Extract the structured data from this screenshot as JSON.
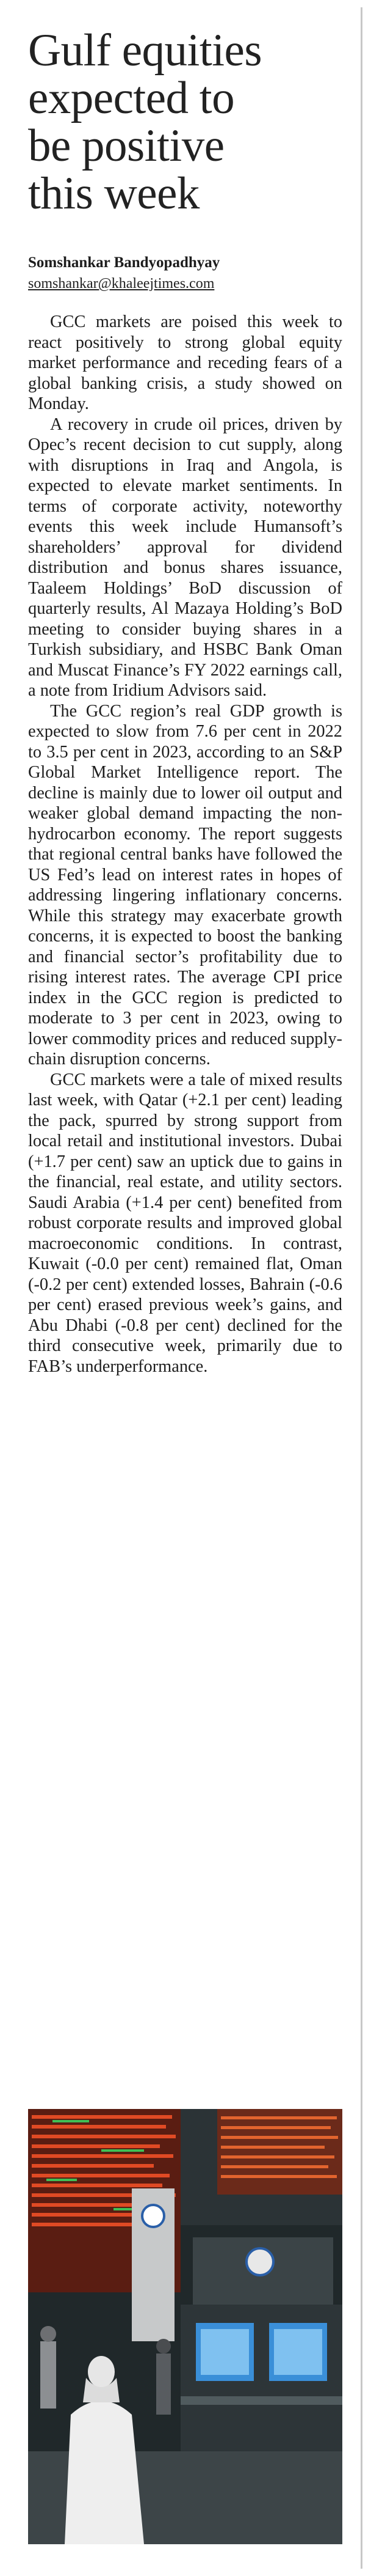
{
  "article": {
    "headline_lines": [
      "Gulf equities",
      "expected to",
      "be positive",
      "this week"
    ],
    "author": "Somshankar Bandyopadhyay",
    "email": "somshankar@khaleejtimes.com",
    "paragraphs": [
      "GCC markets are poised this week to react positively to strong global equity market performance and receding fears of a global banking crisis, a study showed on Monday.",
      "A recovery in crude oil prices, driven by Opec’s recent decision to cut supply, along with disruptions in Iraq and Angola, is expected to elevate market sentiments. In terms of corporate activity, noteworthy events this week include Humansoft’s shareholders’ approval for dividend distribution and bonus shares issuance, Taaleem Holdings’ BoD discussion of quarterly results, Al Mazaya Holding’s BoD meeting to consider buying shares in a Turkish subsidiary, and HSBC Bank Oman and Muscat Finance’s FY 2022 earnings call, a note from Iridium Advisors said.",
      "The GCC region’s real GDP growth is expected to slow from 7.6 per cent in 2022 to 3.5 per cent in 2023, according to an S&P Global Market Intelligence report. The decline is mainly due to lower oil output and weaker global demand impacting the non-hydrocarbon economy. The report suggests that regional central banks have followed the US Fed’s lead on interest rates in hopes of addressing lingering inflationary concerns. While this strategy may exacerbate growth concerns, it is expected to boost the banking and financial sector’s profitability due to rising interest rates. The average CPI price index in the GCC region is predicted to moderate to 3 per cent in 2023, owing to lower commodity prices and reduced supply-chain disruption concerns.",
      "GCC markets were a tale of mixed results last week, with Qatar (+2.1 per cent) leading the pack, spurred by strong support from local retail and institutional investors. Dubai (+1.7 per cent) saw an uptick due to gains in the financial, real estate, and utility sectors. Saudi Arabia (+1.4 per cent) benefited from robust corporate results and improved global macroeconomic conditions. In contrast, Kuwait (-0.0 per cent) remained flat, Oman (-0.2 per cent) extended losses, Bahrain (-0.6 per cent) erased previous week’s gains, and Abu Dhabi (-0.8 per cent) declined for the third consecutive week, primarily due to FAB’s underperformance."
    ]
  },
  "photo": {
    "description_icon": "stock-exchange-photo",
    "board_color": "#c8341c",
    "screen_color": "#3a8fd8"
  }
}
